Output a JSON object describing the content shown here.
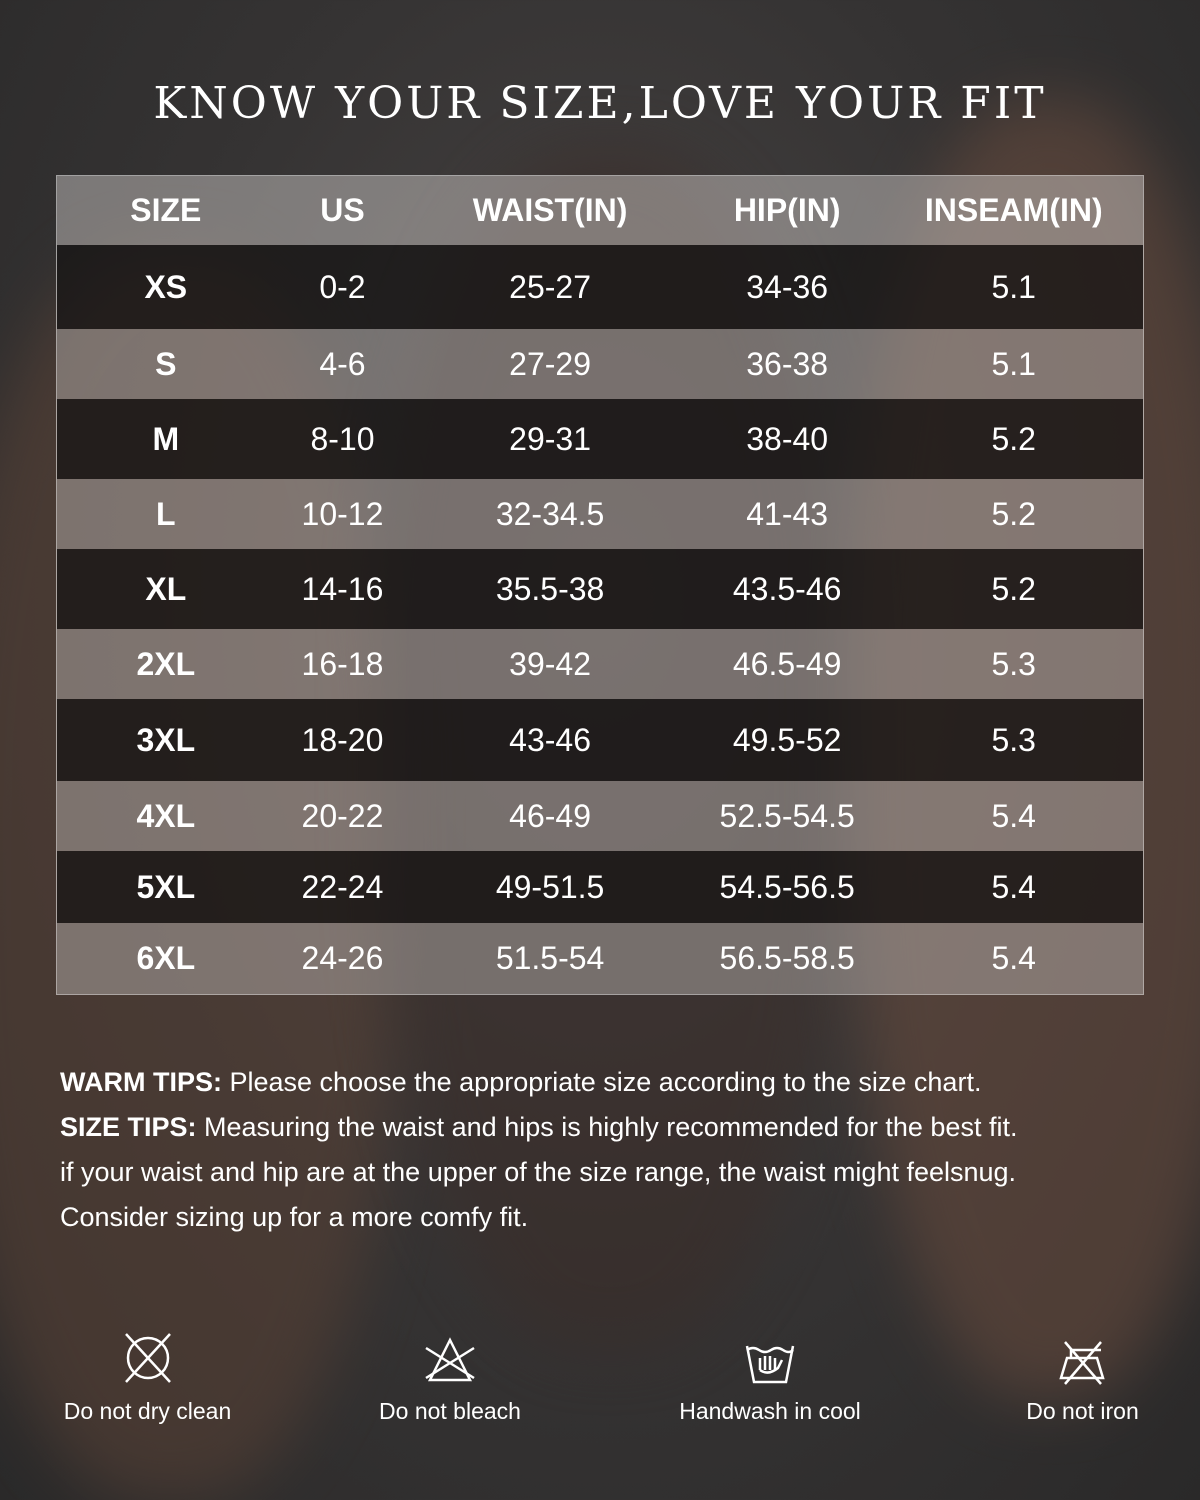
{
  "title": "KNOW YOUR SIZE,LOVE YOUR FIT",
  "table": {
    "headers": [
      "SIZE",
      "US",
      "WAIST(IN)",
      "HIP(IN)",
      "INSEAM(IN)"
    ],
    "rows": [
      [
        "XS",
        "0-2",
        "25-27",
        "34-36",
        "5.1"
      ],
      [
        "S",
        "4-6",
        "27-29",
        "36-38",
        "5.1"
      ],
      [
        "M",
        "8-10",
        "29-31",
        "38-40",
        "5.2"
      ],
      [
        "L",
        "10-12",
        "32-34.5",
        "41-43",
        "5.2"
      ],
      [
        "XL",
        "14-16",
        "35.5-38",
        "43.5-46",
        "5.2"
      ],
      [
        "2XL",
        "16-18",
        "39-42",
        "46.5-49",
        "5.3"
      ],
      [
        "3XL",
        "18-20",
        "43-46",
        "49.5-52",
        "5.3"
      ],
      [
        "4XL",
        "20-22",
        "46-49",
        "52.5-54.5",
        "5.4"
      ],
      [
        "5XL",
        "22-24",
        "49-51.5",
        "54.5-56.5",
        "5.4"
      ],
      [
        "6XL",
        "24-26",
        "51.5-54",
        "56.5-58.5",
        "5.4"
      ]
    ]
  },
  "tips": {
    "warm_label": "WARM TIPS:",
    "warm_text": " Please choose the appropriate size according to the size chart.",
    "size_label": "SIZE TIPS:",
    "size_text": " Measuring the waist and hips is highly recommended for the best fit.",
    "line3": "if your waist and hip are at the upper of the size range, the waist might feelsnug.",
    "line4": "Consider sizing up for a more comfy fit."
  },
  "care": [
    {
      "icon": "no-dry-clean-icon",
      "label": "Do not dry clean"
    },
    {
      "icon": "no-bleach-icon",
      "label": "Do not bleach"
    },
    {
      "icon": "handwash-icon",
      "label": "Handwash in cool"
    },
    {
      "icon": "no-iron-icon",
      "label": "Do not iron"
    }
  ]
}
